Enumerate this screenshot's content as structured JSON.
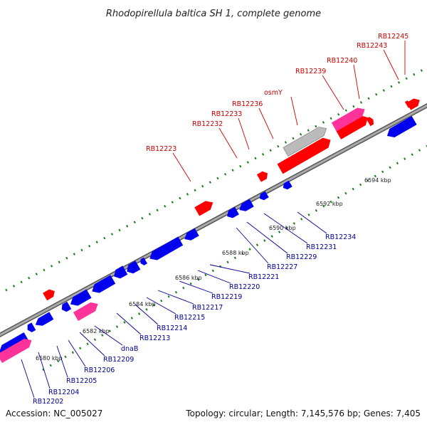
{
  "title": "Rhodopirellula baltica SH 1, complete genome",
  "footer": {
    "accession": "Accession: NC_005027",
    "summary": "Topology: circular; Length: 7,145,576 bp; Genes: 7,405"
  },
  "colors": {
    "forward": "#ff0000",
    "reverse": "#0000ee",
    "rna": "#ff3399",
    "pseudo": "#bbbbbb",
    "backbone": "#888888",
    "tick": "#1a7a1a",
    "label_red": "#cc0000",
    "label_blue": "#000099"
  },
  "ticks": [
    "6580 kbp",
    "6582 kbp",
    "6584 kbp",
    "6586 kbp",
    "6588 kbp",
    "6590 kbp",
    "6592 kbp",
    "6594 kbp"
  ],
  "labels_top": [
    "RB12223",
    "RB12232",
    "RB12233",
    "RB12236",
    "osmY",
    "RB12239",
    "RB12240",
    "RB12243",
    "RB12245"
  ],
  "labels_bottom": [
    "RB12202",
    "RB12204",
    "RB12205",
    "RB12206",
    "RB12209",
    "dnaB",
    "RB12213",
    "RB12214",
    "RB12215",
    "RB12217",
    "RB12219",
    "RB12220",
    "RB12221",
    "RB12227",
    "RB12229",
    "RB12231",
    "RB12234"
  ]
}
